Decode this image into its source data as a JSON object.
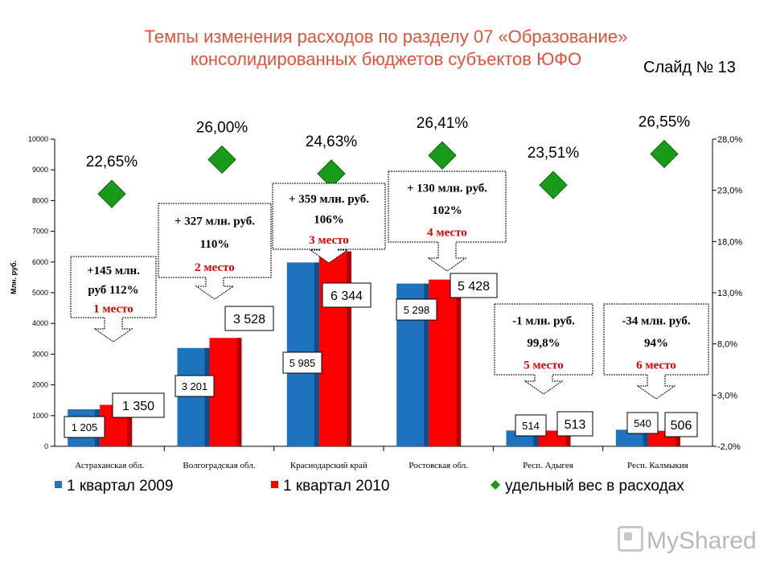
{
  "title_line1": "Темпы изменения расходов по разделу 07 «Образование»",
  "title_line2": "консолидированных бюджетов субъектов ЮФО",
  "slide_label": "Слайд № 13",
  "logo_text": "MyShared",
  "chart_data": {
    "type": "bar",
    "categories": [
      "Астраханская обл.",
      "Волгоградская обл.",
      "Краснодарский край",
      "Ростовская обл.",
      "Респ. Адыгея",
      "Респ. Калмыкия"
    ],
    "series": [
      {
        "name": "1 квартал 2009",
        "color": "#1e73be",
        "values": [
          1205,
          3201,
          5985,
          5298,
          514,
          540
        ],
        "labels": [
          "1 205",
          "3 201",
          "5 985",
          "5 298",
          "514",
          "540"
        ]
      },
      {
        "name": "1 квартал 2010",
        "color": "#ff0000",
        "values": [
          1350,
          3528,
          6344,
          5428,
          513,
          506
        ],
        "labels": [
          "1 350",
          "3 528",
          "6 344",
          "5 428",
          "513",
          "506"
        ]
      }
    ],
    "line_series": {
      "name": "удельный вес в расходах",
      "color": "#1a9a1a",
      "values": [
        22.65,
        26.0,
        24.63,
        26.41,
        23.51,
        26.55
      ],
      "labels": [
        "22,65%",
        "26,00%",
        "24,63%",
        "26,41%",
        "23,51%",
        "26,55%"
      ]
    },
    "ylabel": "Млн. руб.",
    "ylim": [
      0,
      10000
    ],
    "yticks": [
      "0",
      "1000",
      "2000",
      "3000",
      "4000",
      "5000",
      "6000",
      "7000",
      "8000",
      "9000",
      "10000"
    ],
    "y2lim": [
      -2.0,
      28.0
    ],
    "y2ticks": [
      "-2,0%",
      "3,0%",
      "8,0%",
      "13,0%",
      "18,0%",
      "23,0%",
      "28,0%"
    ],
    "callouts": [
      {
        "lines": [
          "+145 млн.",
          "руб 112%",
          "1 место"
        ]
      },
      {
        "lines": [
          "+ 327 млн. руб.",
          "110%",
          "2 место"
        ]
      },
      {
        "lines": [
          "+ 359 млн. руб.",
          "106%",
          "3 место"
        ]
      },
      {
        "lines": [
          "+ 130 млн. руб.",
          "102%",
          "4 место"
        ]
      },
      {
        "lines": [
          "-1 млн. руб.",
          "99,8%",
          "5 место"
        ]
      },
      {
        "lines": [
          "-34 млн. руб.",
          "94%",
          "6 место"
        ]
      }
    ],
    "legend_position": "bottom",
    "grid": false
  }
}
